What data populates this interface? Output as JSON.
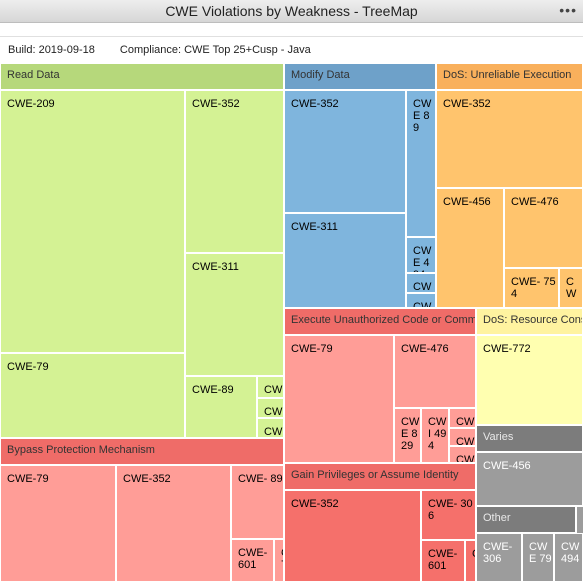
{
  "window": {
    "title": "CWE Violations by Weakness - TreeMap",
    "menu_glyph": "•••"
  },
  "info": {
    "build": "Build: 2019-09-18",
    "compliance": "Compliance: CWE Top 25+Cusp - Java"
  },
  "groups": {
    "read_data": {
      "label": "Read Data",
      "cells": [
        "CWE-209",
        "CWE-352",
        "CWE-311",
        "CWE-79",
        "CWE-89",
        "CW",
        "CW",
        "CW"
      ]
    },
    "modify_data": {
      "label": "Modify Data",
      "cells": [
        "CWE-352",
        "CWE 89",
        "CWE-311",
        "CWE 494",
        "CWE",
        "CWE"
      ]
    },
    "dos_unreliable": {
      "label": "DoS: Unreliable Execution",
      "cells": [
        "CWE-352",
        "CWE-456",
        "CWE-476",
        "CWE- 754",
        "CW"
      ]
    },
    "exec_code": {
      "label": "Execute Unauthorized Code or Comm",
      "cells": [
        "CWE-79",
        "CWE-476",
        "CWE 829",
        "CWI 494",
        "CWI",
        "CWI",
        "CWI"
      ]
    },
    "dos_resource": {
      "label": "DoS: Resource Cons",
      "cells": [
        "CWE-772"
      ]
    },
    "bypass": {
      "label": "Bypass Protection Mechanism",
      "cells": [
        "CWE-79",
        "CWE-352",
        "CWE- 89",
        "CWE- 601",
        "C 7"
      ]
    },
    "gain_priv": {
      "label": "Gain Privileges or Assume Identity",
      "cells": [
        "CWE-352",
        "CWE- 306",
        "CWE- 601",
        "C"
      ]
    },
    "varies": {
      "label": "Varies",
      "cells": [
        "CWE-456"
      ]
    },
    "other": {
      "label": "Other",
      "cells": [
        "CWE- 306",
        "CWE 79",
        "CW 494"
      ]
    }
  }
}
